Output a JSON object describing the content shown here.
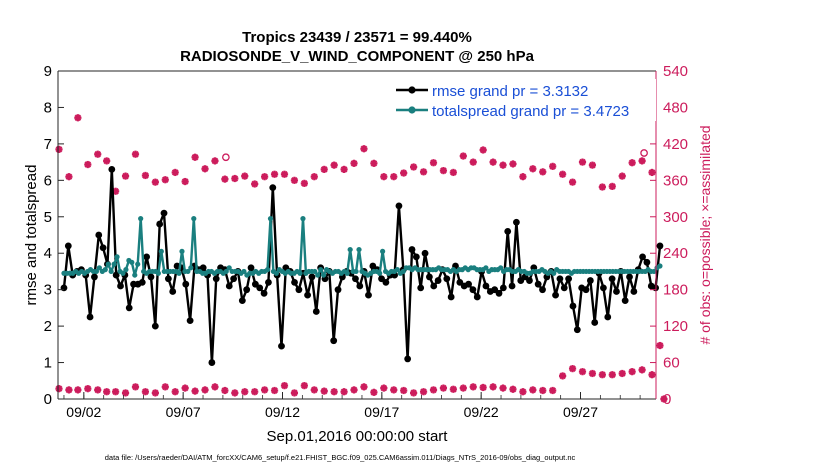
{
  "chart_data": {
    "type": "line",
    "title_line1": "Tropics 23439 / 23571 = 99.440%",
    "title_line2": "RADIOSONDE_V_WIND_COMPONENT @ 250 hPa",
    "xlabel": "Sep.01,2016 00:00:00 start",
    "ylabel_left": "rmse and totalspread",
    "ylabel_right": "# of obs: o=possible; ×=assimilated",
    "footnote": "data file: /Users/raeder/DAI/ATM_forcXX/CAM6_setup/f.e21.FHIST_BGC.f09_025.CAM6assim.011/Diags_NTrS_2016-09/obs_diag_output.nc",
    "x_range": [
      0.7,
      30.8
    ],
    "ylim_left": [
      0,
      9
    ],
    "ylim_right": [
      0,
      540
    ],
    "yticks_left": [
      "0",
      "1",
      "2",
      "3",
      "4",
      "5",
      "6",
      "7",
      "8",
      "9"
    ],
    "yticks_right": [
      "0",
      "60",
      "120",
      "180",
      "240",
      "300",
      "360",
      "420",
      "480",
      "540"
    ],
    "xticks": [
      {
        "day": 2,
        "label": "09/02"
      },
      {
        "day": 7,
        "label": "09/07"
      },
      {
        "day": 12,
        "label": "09/12"
      },
      {
        "day": 17,
        "label": "09/17"
      },
      {
        "day": 22,
        "label": "09/22"
      },
      {
        "day": 27,
        "label": "09/27"
      }
    ],
    "series": [
      {
        "name": "rmse grand pr = 3.3132",
        "axis": "left",
        "color": "#000000",
        "values": [
          3.05,
          4.2,
          3.4,
          3.5,
          3.55,
          3.4,
          2.25,
          3.35,
          4.5,
          4.15,
          3.7,
          6.3,
          3.4,
          3.1,
          3.4,
          2.5,
          3.15,
          3.15,
          3.2,
          3.9,
          3.35,
          2.0,
          4.8,
          5.1,
          3.3,
          2.95,
          3.65,
          3.6,
          3.15,
          2.15,
          3.65,
          3.55,
          3.6,
          3.4,
          1.0,
          3.3,
          3.6,
          3.55,
          3.1,
          3.3,
          3.5,
          2.7,
          3.0,
          3.6,
          3.15,
          3.05,
          2.9,
          3.2,
          5.8,
          3.4,
          1.45,
          3.6,
          3.5,
          3.2,
          3.0,
          3.45,
          2.85,
          3.35,
          2.4,
          3.6,
          3.3,
          3.5,
          1.6,
          3.0,
          3.35,
          3.5,
          3.45,
          3.3,
          3.1,
          3.5,
          2.85,
          3.65,
          3.55,
          3.3,
          3.2,
          3.4,
          3.4,
          5.3,
          3.55,
          1.1,
          4.1,
          3.9,
          3.05,
          4.0,
          3.35,
          3.1,
          3.25,
          3.55,
          3.3,
          2.8,
          3.65,
          3.2,
          3.1,
          3.15,
          3.0,
          2.8,
          3.5,
          3.1,
          2.95,
          3.0,
          2.9,
          3.05,
          4.6,
          3.1,
          4.85,
          3.25,
          3.35,
          3.25,
          3.6,
          3.15,
          3.0,
          3.35,
          3.5,
          2.85,
          3.3,
          3.05,
          3.3,
          2.55,
          1.9,
          3.05,
          3.0,
          3.25,
          2.1,
          3.45,
          3.05,
          2.25,
          3.3,
          2.95,
          3.5,
          2.7,
          3.35,
          2.95,
          3.55,
          3.9,
          3.75,
          3.1,
          3.05,
          4.2
        ]
      },
      {
        "name": "totalspread grand pr = 3.4723",
        "axis": "left",
        "color": "#1a7f7f",
        "values": [
          3.45,
          3.45,
          3.45,
          3.45,
          3.5,
          3.45,
          3.5,
          3.45,
          3.5,
          3.55,
          3.5,
          3.5,
          3.6,
          3.5,
          3.55,
          3.7,
          3.5,
          3.7,
          3.9,
          3.5,
          3.45,
          3.55,
          3.8,
          3.75,
          3.4,
          3.7,
          4.95,
          3.5,
          3.45,
          3.5,
          3.5,
          3.5,
          3.45,
          4.05,
          3.5,
          3.5,
          3.5,
          3.5,
          3.5,
          3.45,
          4.05,
          3.5,
          3.5,
          3.6,
          4.95,
          3.5,
          3.5,
          3.45,
          3.45,
          3.5,
          3.5,
          3.45,
          3.5,
          3.5,
          3.45,
          3.5,
          3.6,
          3.5,
          3.5,
          3.5,
          3.45,
          3.5,
          3.4,
          3.45,
          3.45,
          3.5,
          3.45,
          3.5,
          3.5,
          3.55,
          4.95,
          3.5,
          3.45,
          3.55,
          3.5,
          3.45,
          3.5,
          3.45,
          3.45,
          3.5,
          3.45,
          4.95,
          3.45,
          3.5,
          3.5,
          3.5,
          3.4,
          3.55,
          3.4,
          3.55,
          3.5,
          3.45,
          3.5,
          3.5,
          3.45,
          3.5,
          3.45,
          4.1,
          3.5,
          3.5,
          4.1,
          3.5,
          3.45,
          3.4,
          3.45,
          3.5,
          3.5,
          3.45,
          4.05,
          3.5,
          3.45,
          3.5,
          3.5,
          3.55,
          3.45,
          3.5,
          3.6,
          3.6,
          3.55,
          3.6,
          3.55,
          3.55,
          3.55,
          3.55,
          3.55,
          3.55,
          3.55,
          3.6,
          3.55,
          3.55,
          3.55,
          3.5,
          3.55,
          3.5,
          3.55,
          3.55,
          3.6,
          3.55,
          3.6,
          3.6,
          3.55,
          3.55,
          3.55,
          3.6,
          3.5,
          3.55,
          3.55,
          3.55,
          3.6,
          3.5,
          3.55,
          3.55,
          3.5,
          3.5,
          3.55,
          3.5,
          3.5,
          3.45,
          3.45,
          3.5,
          3.5,
          3.5,
          3.55,
          3.5,
          3.45,
          3.5,
          3.45,
          3.55,
          3.5,
          3.5,
          3.5,
          3.5,
          3.45,
          3.5,
          3.5,
          3.5,
          3.5,
          3.5,
          3.5,
          3.5,
          3.5,
          3.5,
          3.5,
          3.5,
          3.5,
          3.5,
          3.5,
          3.5,
          3.5,
          3.5,
          3.5,
          3.5,
          3.5,
          3.5,
          3.5,
          3.5,
          3.5,
          3.5,
          3.55,
          3.5,
          3.5,
          3.6,
          3.65
        ]
      }
    ],
    "obs_count_high": {
      "axis": "right",
      "color": "#cc1c5c",
      "points": [
        [
          0.75,
          411
        ],
        [
          1.25,
          366
        ],
        [
          1.7,
          463
        ],
        [
          2.2,
          386
        ],
        [
          2.7,
          403
        ],
        [
          3.15,
          392
        ],
        [
          3.6,
          342
        ],
        [
          4.1,
          367
        ],
        [
          4.6,
          403
        ],
        [
          5.1,
          368
        ],
        [
          5.6,
          357
        ],
        [
          6.1,
          361
        ],
        [
          6.6,
          373
        ],
        [
          7.1,
          358
        ],
        [
          7.6,
          398
        ],
        [
          8.1,
          379
        ],
        [
          8.6,
          392
        ],
        [
          9.1,
          362
        ],
        [
          9.6,
          363
        ],
        [
          10.1,
          367
        ],
        [
          10.6,
          354
        ],
        [
          11.1,
          366
        ],
        [
          11.6,
          370
        ],
        [
          12.1,
          370
        ],
        [
          12.6,
          360
        ],
        [
          13.1,
          355
        ],
        [
          13.6,
          366
        ],
        [
          14.1,
          378
        ],
        [
          14.6,
          385
        ],
        [
          15.1,
          378
        ],
        [
          15.6,
          388
        ],
        [
          16.1,
          412
        ],
        [
          16.6,
          388
        ],
        [
          17.1,
          366
        ],
        [
          17.6,
          366
        ],
        [
          18.1,
          372
        ],
        [
          18.6,
          382
        ],
        [
          19.1,
          374
        ],
        [
          19.6,
          389
        ],
        [
          20.1,
          376
        ],
        [
          20.6,
          373
        ],
        [
          21.1,
          400
        ],
        [
          21.6,
          390
        ],
        [
          22.1,
          410
        ],
        [
          22.6,
          390
        ],
        [
          23.1,
          385
        ],
        [
          23.6,
          387
        ],
        [
          24.1,
          366
        ],
        [
          24.6,
          379
        ],
        [
          25.1,
          374
        ],
        [
          25.6,
          383
        ],
        [
          26.1,
          370
        ],
        [
          26.6,
          357
        ],
        [
          27.1,
          390
        ],
        [
          27.6,
          385
        ],
        [
          28.1,
          349
        ],
        [
          28.6,
          350
        ],
        [
          29.1,
          367
        ],
        [
          29.6,
          389
        ],
        [
          30.1,
          392
        ],
        [
          30.6,
          373
        ]
      ],
      "possible_only": [
        [
          9.15,
          398
        ],
        [
          30.2,
          405
        ]
      ]
    },
    "obs_count_low": {
      "axis": "right",
      "color": "#cc1c5c",
      "points": [
        [
          0.75,
          17
        ],
        [
          1.25,
          15
        ],
        [
          1.7,
          15
        ],
        [
          2.2,
          17
        ],
        [
          2.7,
          15
        ],
        [
          3.15,
          12
        ],
        [
          3.6,
          12
        ],
        [
          4.1,
          10
        ],
        [
          4.6,
          20
        ],
        [
          5.1,
          12
        ],
        [
          5.6,
          10
        ],
        [
          6.1,
          20
        ],
        [
          6.6,
          12
        ],
        [
          7.1,
          18
        ],
        [
          7.6,
          13
        ],
        [
          8.1,
          15
        ],
        [
          8.6,
          20
        ],
        [
          9.1,
          14
        ],
        [
          9.6,
          10
        ],
        [
          10.1,
          12
        ],
        [
          10.6,
          12
        ],
        [
          11.1,
          15
        ],
        [
          11.6,
          14
        ],
        [
          12.1,
          22
        ],
        [
          12.6,
          10
        ],
        [
          13.1,
          22
        ],
        [
          13.6,
          15
        ],
        [
          14.1,
          13
        ],
        [
          14.6,
          12
        ],
        [
          15.1,
          12
        ],
        [
          15.6,
          15
        ],
        [
          16.1,
          20
        ],
        [
          16.6,
          11
        ],
        [
          17.1,
          18
        ],
        [
          17.6,
          15
        ],
        [
          18.1,
          14
        ],
        [
          18.6,
          10
        ],
        [
          19.1,
          12
        ],
        [
          19.6,
          15
        ],
        [
          20.1,
          18
        ],
        [
          20.6,
          16
        ],
        [
          21.1,
          18
        ],
        [
          21.6,
          20
        ],
        [
          22.1,
          19
        ],
        [
          22.6,
          20
        ],
        [
          23.1,
          18
        ],
        [
          23.6,
          16
        ],
        [
          24.1,
          12
        ],
        [
          24.6,
          15
        ],
        [
          25.1,
          14
        ],
        [
          25.6,
          14
        ],
        [
          26.1,
          38
        ],
        [
          26.6,
          50
        ],
        [
          27.1,
          45
        ],
        [
          27.6,
          42
        ],
        [
          28.1,
          40
        ],
        [
          28.6,
          40
        ],
        [
          29.1,
          42
        ],
        [
          29.6,
          45
        ],
        [
          30.1,
          48
        ],
        [
          30.6,
          40
        ],
        [
          31.0,
          88
        ],
        [
          31.2,
          0
        ]
      ]
    },
    "legend": {
      "position": "top-right"
    }
  }
}
